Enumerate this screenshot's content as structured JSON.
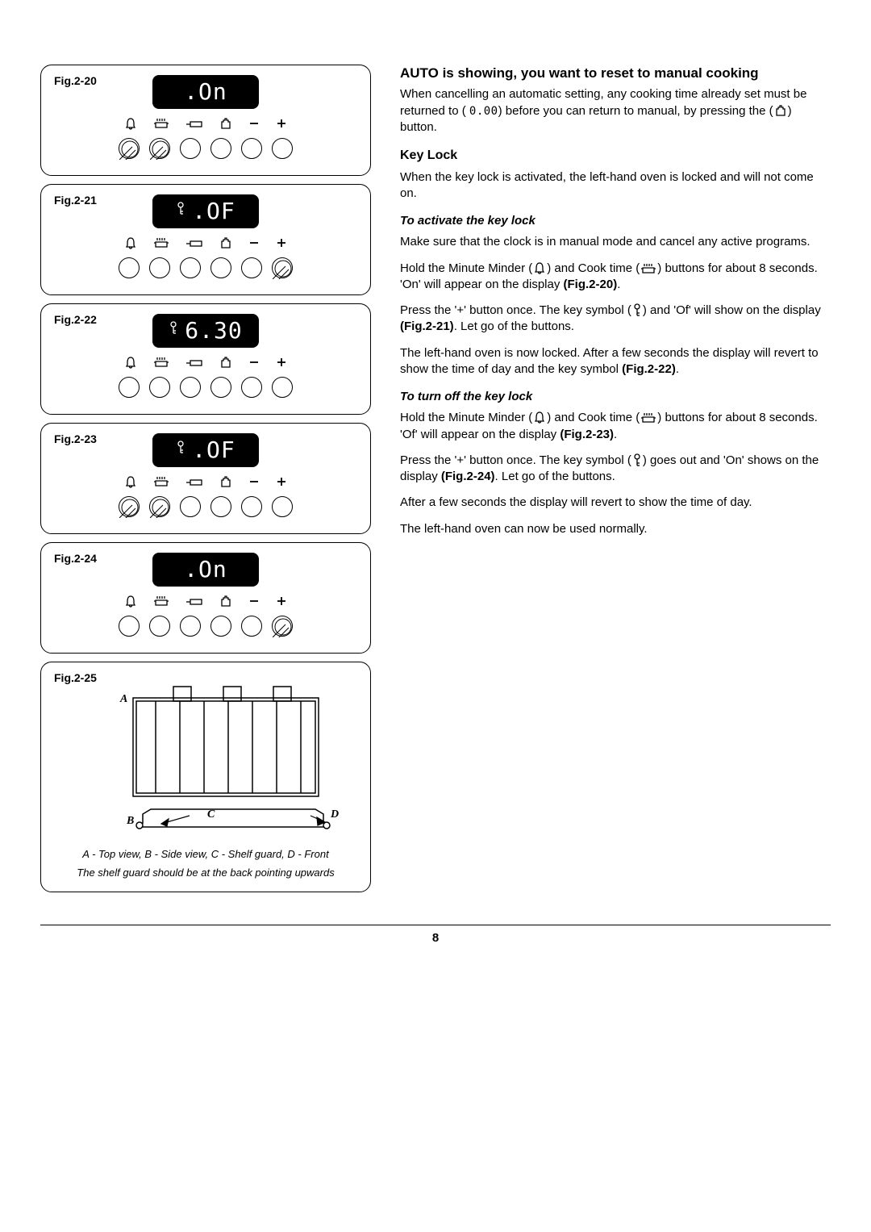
{
  "page_number": "8",
  "figures": [
    {
      "id": "fig-2-20",
      "label": "Fig.2-20",
      "display_key": false,
      "display_text": ".On",
      "pressed": [
        0,
        1
      ]
    },
    {
      "id": "fig-2-21",
      "label": "Fig.2-21",
      "display_key": true,
      "display_text": ".OF",
      "pressed": [
        5
      ]
    },
    {
      "id": "fig-2-22",
      "label": "Fig.2-22",
      "display_key": true,
      "display_text": "6.30",
      "pressed": []
    },
    {
      "id": "fig-2-23",
      "label": "Fig.2-23",
      "display_key": true,
      "display_text": ".OF",
      "pressed": [
        0,
        1
      ]
    },
    {
      "id": "fig-2-24",
      "label": "Fig.2-24",
      "display_key": false,
      "display_text": ".On",
      "pressed": [
        5
      ]
    }
  ],
  "fig25": {
    "label": "Fig.2-25",
    "letters": {
      "A": "A",
      "B": "B",
      "C": "C",
      "D": "D"
    },
    "caption_l1": "A - Top view,   B - Side view,   C - Shelf guard,   D - Front",
    "caption_l2": "The shelf guard should be at the back pointing upwards"
  },
  "text": {
    "h_auto": "AUTO is showing, you want to reset to manual cooking",
    "p_auto": "When cancelling an automatic setting, any cooking time already set must be returned to ( {SEG000} ) before you can return to manual, by pressing the ({ICON_MANUAL}) button.",
    "seg_000": "0.00",
    "h_keylock": "Key Lock",
    "p_keylock": "When the key lock is activated, the left-hand oven is locked and will not come on.",
    "h_activate": "To activate the key lock",
    "p_act1": "Make sure that the clock is in manual mode and cancel any active programs.",
    "p_act2_a": "Hold the Minute Minder (",
    "p_act2_b": ") and Cook time (",
    "p_act2_c": ") buttons for about 8 seconds. 'On' will appear on the display ",
    "p_act2_ref": "(Fig.2-20)",
    "p_act3_a": "Press the '+' button once. The key symbol (",
    "p_act3_b": ") and 'Of' will show on the display ",
    "p_act3_ref": "(Fig.2-21)",
    "p_act3_c": ". Let go of the buttons.",
    "p_act4_a": "The left-hand oven is now locked. After a few seconds the display will revert to show the time of day and the key symbol ",
    "p_act4_ref": "(Fig.2-22)",
    "h_turnoff": "To turn off the key lock",
    "p_off1_a": "Hold the Minute Minder (",
    "p_off1_b": ") and Cook time (",
    "p_off1_c": ") buttons for about 8 seconds. 'Of' will appear on the display ",
    "p_off1_ref": "(Fig.2-23)",
    "p_off2_a": "Press the '+' button once. The key symbol (",
    "p_off2_b": ") goes out and 'On' shows on the display ",
    "p_off2_ref": "(Fig.2-24)",
    "p_off2_c": ". Let go of the buttons.",
    "p_off3": "After a few seconds the display will revert to show the time of day.",
    "p_off4": "The left-hand oven can now be used normally."
  },
  "style": {
    "colors": {
      "text": "#000000",
      "bg": "#ffffff",
      "lcd_bg": "#000000",
      "lcd_fg": "#ffffff"
    },
    "icon_stroke": 1.3,
    "button_count": 6
  }
}
